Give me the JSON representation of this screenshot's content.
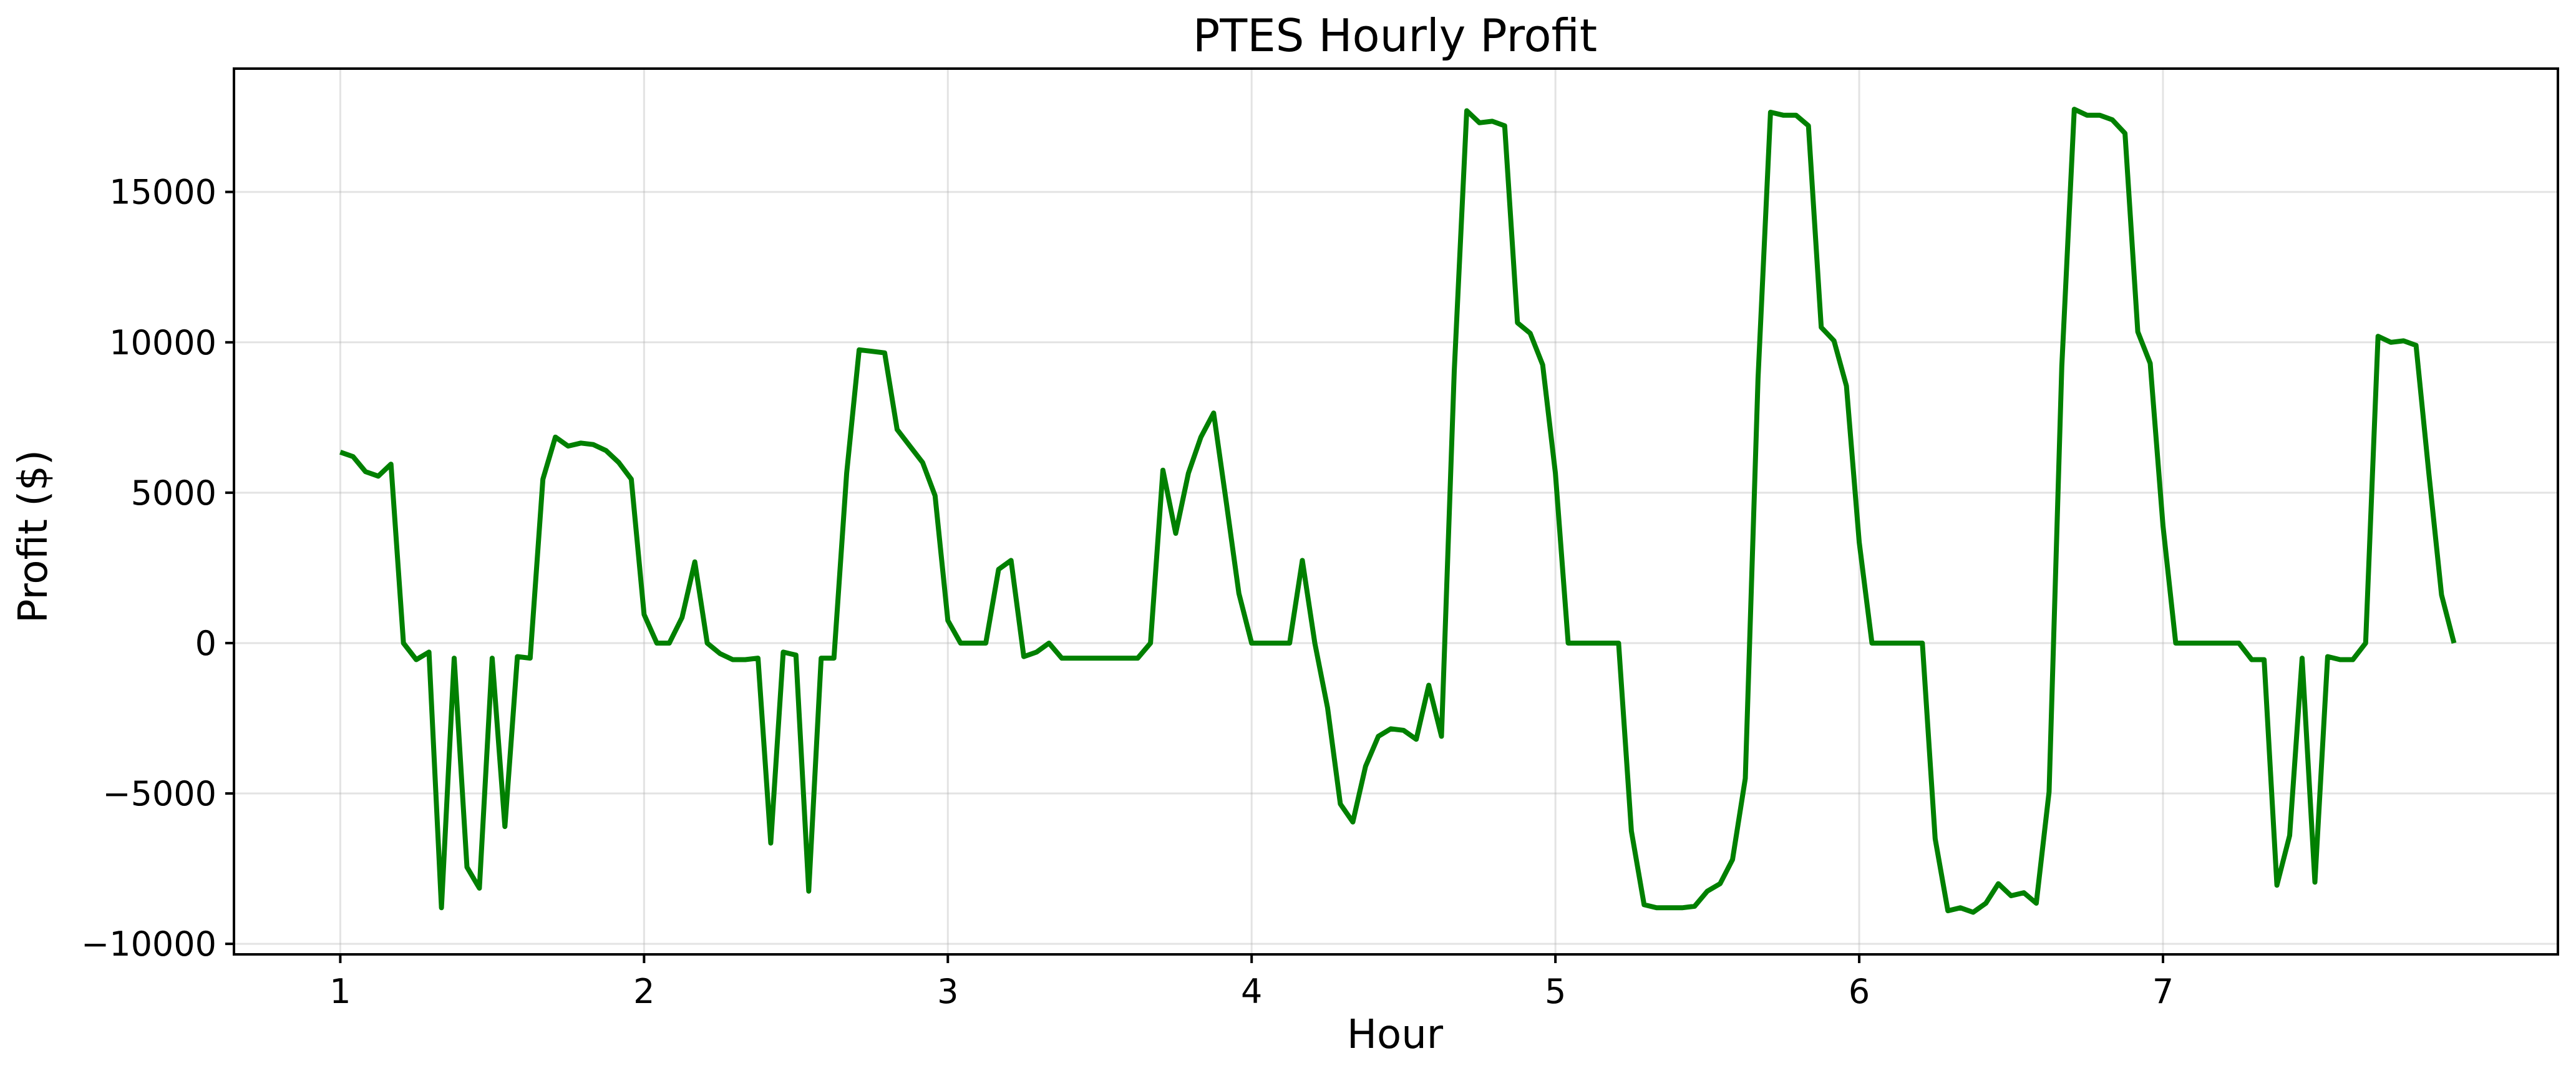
{
  "chart_data": {
    "type": "line",
    "title": "PTES Hourly Profit",
    "xlabel": "Hour",
    "ylabel": "Profit ($)",
    "xlim": [
      0.65,
      8.3
    ],
    "ylim": [
      -10350,
      19100
    ],
    "xticks": [
      1,
      2,
      3,
      4,
      5,
      6,
      7
    ],
    "xtick_labels": [
      "1",
      "2",
      "3",
      "4",
      "5",
      "6",
      "7"
    ],
    "yticks": [
      -10000,
      -5000,
      0,
      5000,
      10000,
      15000
    ],
    "ytick_labels": [
      "−10000",
      "−5000",
      "0",
      "5000",
      "10000",
      "15000"
    ],
    "grid": true,
    "line_color": "#008000",
    "series": [
      {
        "x": [
          1.0,
          1.042,
          1.083,
          1.125,
          1.167,
          1.208,
          1.25,
          1.292,
          1.333,
          1.375,
          1.417,
          1.458,
          1.5,
          1.542,
          1.583,
          1.625,
          1.667,
          1.708,
          1.75,
          1.792,
          1.833,
          1.875,
          1.917,
          1.958,
          2.0,
          2.042,
          2.083,
          2.125,
          2.167,
          2.208,
          2.25,
          2.292,
          2.333,
          2.375,
          2.417,
          2.458,
          2.5,
          2.542,
          2.583,
          2.625,
          2.667,
          2.708,
          2.75,
          2.792,
          2.833,
          2.875,
          2.917,
          2.958,
          3.0,
          3.042,
          3.083,
          3.125,
          3.167,
          3.208,
          3.25,
          3.292,
          3.333,
          3.375,
          3.417,
          3.458,
          3.5,
          3.542,
          3.583,
          3.625,
          3.667,
          3.708,
          3.75,
          3.792,
          3.833,
          3.875,
          3.917,
          3.958,
          4.0,
          4.042,
          4.083,
          4.125,
          4.167,
          4.208,
          4.25,
          4.292,
          4.333,
          4.375,
          4.417,
          4.458,
          4.5,
          4.542,
          4.583,
          4.625,
          4.667,
          4.708,
          4.75,
          4.792,
          4.833,
          4.875,
          4.917,
          4.958,
          5.0,
          5.042,
          5.083,
          5.125,
          5.167,
          5.208,
          5.25,
          5.292,
          5.333,
          5.375,
          5.417,
          5.458,
          5.5,
          5.542,
          5.583,
          5.625,
          5.667,
          5.708,
          5.75,
          5.792,
          5.833,
          5.875,
          5.917,
          5.958,
          6.0,
          6.042,
          6.083,
          6.125,
          6.167,
          6.208,
          6.25,
          6.292,
          6.333,
          6.375,
          6.417,
          6.458,
          6.5,
          6.542,
          6.583,
          6.625,
          6.667,
          6.708,
          6.75,
          6.792,
          6.833,
          6.875,
          6.917,
          6.958,
          7.0,
          7.042,
          7.083,
          7.125,
          7.167,
          7.208,
          7.25,
          7.292,
          7.333,
          7.375,
          7.417,
          7.458,
          7.5,
          7.542,
          7.583,
          7.625,
          7.667,
          7.708,
          7.75,
          7.792,
          7.833,
          7.875,
          7.917,
          7.958
        ],
        "values": [
          6350,
          6200,
          5700,
          5550,
          5950,
          0,
          -550,
          -300,
          -8800,
          -500,
          -7450,
          -8150,
          -500,
          -6100,
          -450,
          -500,
          5450,
          6850,
          6550,
          6650,
          6600,
          6400,
          6000,
          5450,
          950,
          0,
          0,
          850,
          2700,
          0,
          -350,
          -550,
          -550,
          -500,
          -6650,
          -300,
          -400,
          -8250,
          -500,
          -500,
          5650,
          9750,
          9700,
          9650,
          7100,
          6550,
          6000,
          4900,
          750,
          0,
          0,
          0,
          2450,
          2750,
          -450,
          -300,
          0,
          -500,
          -500,
          -500,
          -500,
          -500,
          -500,
          -500,
          0,
          5750,
          3650,
          5650,
          6850,
          7650,
          4650,
          1650,
          0,
          0,
          0,
          0,
          2750,
          0,
          -2150,
          -5350,
          -5950,
          -4100,
          -3100,
          -2850,
          -2900,
          -3200,
          -1400,
          -3100,
          9050,
          17700,
          17300,
          17350,
          17200,
          10650,
          10300,
          9250,
          5650,
          0,
          0,
          0,
          0,
          0,
          -6250,
          -8700,
          -8800,
          -8800,
          -8800,
          -8750,
          -8250,
          -8000,
          -7200,
          -4500,
          8800,
          17650,
          17550,
          17550,
          17200,
          10500,
          10050,
          8550,
          3350,
          0,
          0,
          0,
          0,
          0,
          -6500,
          -8900,
          -8800,
          -8950,
          -8650,
          -8000,
          -8400,
          -8300,
          -8650,
          -4950,
          9200,
          17750,
          17550,
          17550,
          17400,
          16950,
          10350,
          9300,
          3900,
          0,
          0,
          0,
          0,
          0,
          0,
          -550,
          -550,
          -8050,
          -6400,
          -500,
          -7950,
          -450,
          -550,
          -550,
          0,
          10200,
          10000,
          10050,
          9900,
          5650,
          1600,
          0
        ]
      }
    ]
  }
}
